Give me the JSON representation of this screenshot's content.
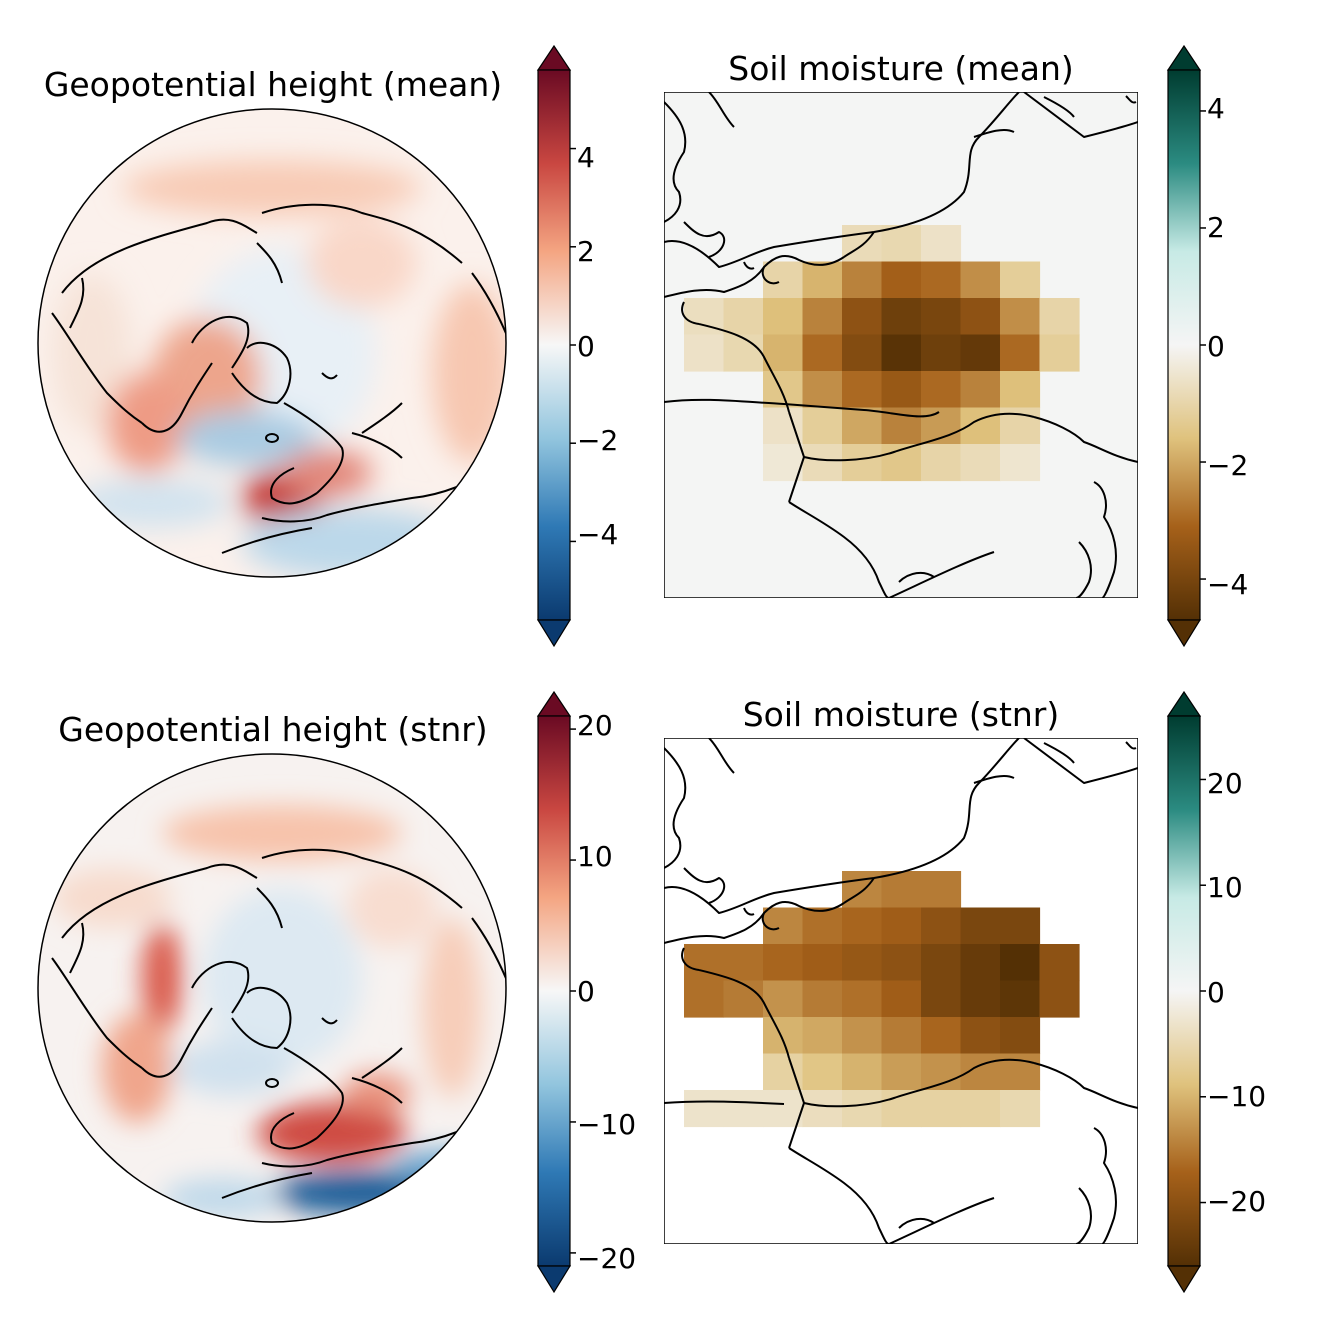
{
  "panels": [
    {
      "title": "Geopotential height (mean)",
      "colorbar": {
        "colormap": "RdBu_r",
        "range": [
          -5.6,
          5.6
        ],
        "ticks": [
          4,
          2,
          0,
          -2,
          -4
        ],
        "tick_labels": [
          "4",
          "2",
          "0",
          "−2",
          "−4"
        ],
        "colors": [
          "#0b3a6f",
          "#2f79b5",
          "#92c5de",
          "#f7f7f7",
          "#f4a582",
          "#c94741",
          "#6a0a23"
        ]
      },
      "map": {
        "projection": "north-polar-orthographic"
      }
    },
    {
      "title": "Soil moisture (mean)",
      "colorbar": {
        "colormap": "BrBG",
        "range": [
          -4.7,
          4.7
        ],
        "ticks": [
          4,
          2,
          0,
          -2,
          -4
        ],
        "tick_labels": [
          "4",
          "2",
          "0",
          "−2",
          "−4"
        ],
        "colors": [
          "#003c30",
          "#2b8b81",
          "#c7eae5",
          "#f5f5f5",
          "#dfc27d",
          "#a6611a",
          "#543005"
        ]
      },
      "map": {
        "region": "France"
      }
    },
    {
      "title": "Geopotential height (stnr)",
      "colorbar": {
        "colormap": "RdBu_r",
        "range": [
          -21,
          21
        ],
        "ticks": [
          20,
          10,
          0,
          -10,
          -20
        ],
        "tick_labels": [
          "20",
          "10",
          "0",
          "−10",
          "−20"
        ],
        "colors": [
          "#0b3a6f",
          "#2f79b5",
          "#92c5de",
          "#f7f7f7",
          "#f4a582",
          "#c94741",
          "#6a0a23"
        ]
      },
      "map": {
        "projection": "north-polar-orthographic"
      }
    },
    {
      "title": "Soil moisture (stnr)",
      "colorbar": {
        "colormap": "BrBG",
        "range": [
          -26,
          26
        ],
        "ticks": [
          20,
          10,
          0,
          -10,
          -20
        ],
        "tick_labels": [
          "20",
          "10",
          "0",
          "−10",
          "−20"
        ],
        "colors": [
          "#003c30",
          "#2b8b81",
          "#c7eae5",
          "#f5f5f5",
          "#dfc27d",
          "#a6611a",
          "#543005"
        ]
      },
      "map": {
        "region": "France"
      }
    }
  ],
  "soil_grid": {
    "columns": 10,
    "rows": 7,
    "mean_values": [
      [
        null,
        null,
        null,
        null,
        -0.8,
        -0.9,
        -0.6,
        null,
        null,
        null
      ],
      [
        null,
        null,
        -1.0,
        -1.8,
        -2.6,
        -3.2,
        -3.0,
        -2.4,
        -1.2,
        null
      ],
      [
        -0.7,
        -1.0,
        -1.6,
        -2.6,
        -3.6,
        -4.2,
        -4.0,
        -3.6,
        -2.4,
        -1.0
      ],
      [
        -0.6,
        -0.9,
        -1.8,
        -3.0,
        -3.8,
        -4.6,
        -4.2,
        -4.4,
        -3.0,
        -1.2
      ],
      [
        null,
        null,
        -1.4,
        -2.4,
        -3.0,
        -3.4,
        -3.0,
        -2.6,
        -1.6,
        null
      ],
      [
        null,
        null,
        -0.6,
        -1.2,
        -2.0,
        -2.6,
        -2.2,
        -1.6,
        -1.0,
        null
      ],
      [
        null,
        null,
        -0.4,
        -0.8,
        -1.2,
        -1.4,
        -1.0,
        -0.8,
        -0.5,
        null
      ]
    ],
    "stnr_values": [
      [
        null,
        null,
        null,
        null,
        -14,
        -15,
        -15,
        null,
        null,
        null
      ],
      [
        null,
        null,
        -14,
        -16,
        -17,
        -18,
        -20,
        -22,
        -22,
        null
      ],
      [
        -16,
        -16,
        -17,
        -18,
        -19,
        -20,
        -22,
        -24,
        -26,
        -20
      ],
      [
        -16,
        -15,
        -13,
        -15,
        -16,
        -18,
        -22,
        -24,
        -25,
        -20
      ],
      [
        null,
        null,
        -10,
        -11,
        -13,
        -15,
        -17,
        -20,
        -21,
        null
      ],
      [
        null,
        null,
        -6,
        -8,
        -10,
        -12,
        -13,
        -14,
        -14,
        null
      ],
      [
        -3,
        -3,
        -3,
        -4,
        -5,
        -6,
        -6,
        -6,
        -5,
        null
      ]
    ]
  }
}
